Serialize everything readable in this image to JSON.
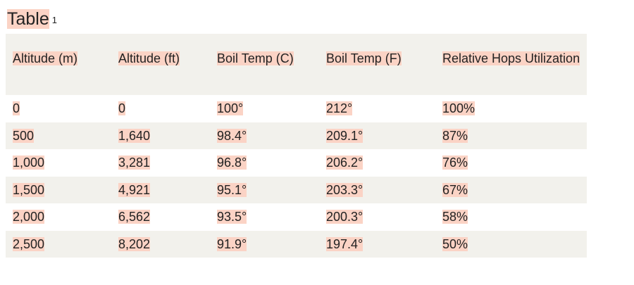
{
  "title": {
    "text": "Table",
    "note": "1"
  },
  "table": {
    "header": [
      "Altitude (m)",
      "Altitude (ft)",
      "Boil Temp (C)",
      "Boil Temp (F)",
      "Relative Hops Utilization"
    ],
    "rows": [
      [
        "0",
        "0",
        "100°",
        "212°",
        "100%"
      ],
      [
        "500",
        "1,640",
        "98.4°",
        "209.1°",
        "87%"
      ],
      [
        "1,000",
        "3,281",
        "96.8°",
        "206.2°",
        "76%"
      ],
      [
        "1,500",
        "4,921",
        "95.1°",
        "203.3°",
        "67%"
      ],
      [
        "2,000",
        "6,562",
        "93.5°",
        "200.3°",
        "58%"
      ],
      [
        "2,500",
        "8,202",
        "91.9°",
        "197.4°",
        "50%"
      ]
    ]
  }
}
